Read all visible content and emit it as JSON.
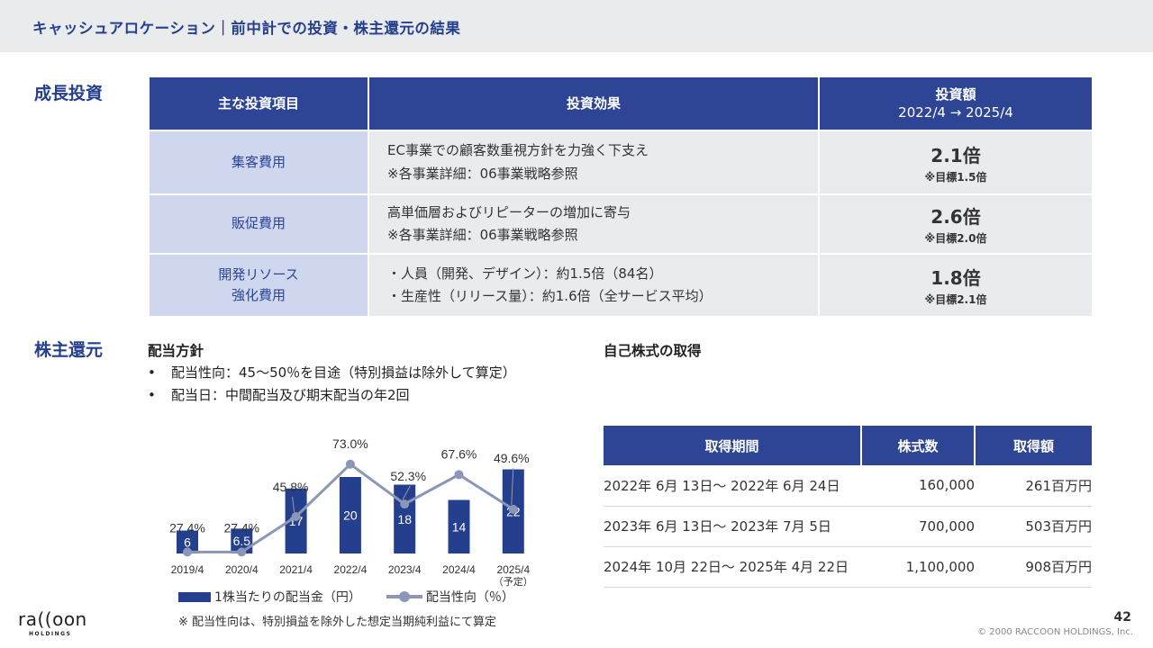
{
  "header": {
    "title": "キャッシュアロケーション｜前中計での投資・株主還元の結果"
  },
  "growth": {
    "label": "成長投資",
    "headers": {
      "item": "主な投資項目",
      "effect": "投資効果",
      "amount": "投資額",
      "amount_period": "2022/4 → 2025/4"
    },
    "rows": [
      {
        "item": [
          "集客費用"
        ],
        "effect": [
          "EC事業での顧客数重視方針を力強く下支え",
          "※各事業詳細：06事業戦略参照"
        ],
        "amount": "2.1倍",
        "target": "※目標1.5倍"
      },
      {
        "item": [
          "販促費用"
        ],
        "effect": [
          "高単価層およびリピーターの増加に寄与",
          "※各事業詳細：06事業戦略参照"
        ],
        "amount": "2.6倍",
        "target": "※目標2.0倍"
      },
      {
        "item": [
          "開発リソース",
          "強化費用"
        ],
        "effect": [
          "・人員（開発、デザイン）：約1.5倍（84名）",
          "・生産性（リリース量）：約1.6倍（全サービス平均）"
        ],
        "amount": "1.8倍",
        "target": "※目標2.1倍"
      }
    ]
  },
  "returns": {
    "label": "株主還元",
    "dividend": {
      "heading": "配当方針",
      "bullets": [
        {
          "dot": "•",
          "text": "配当性向：45〜50％を目途（特別損益は除外して算定）"
        },
        {
          "dot": "•",
          "text": "配当日：中間配当及び期末配当の年2回"
        }
      ]
    },
    "buyback": {
      "heading": "自己株式の取得",
      "headers": [
        "取得期間",
        "株式数",
        "取得額"
      ],
      "rows": [
        [
          "2022年 6月 13日〜 2022年 6月 24日",
          "160,000",
          "261百万円"
        ],
        [
          "2023年 6月 13日〜 2023年 7月 5日",
          "700,000",
          "503百万円"
        ],
        [
          "2024年 10月 22日〜 2025年 4月 22日",
          "1,100,000",
          "908百万円"
        ]
      ]
    }
  },
  "chart_data": {
    "type": "bar",
    "categories": [
      "2019/4",
      "2020/4",
      "2021/4",
      "2022/4",
      "2023/4",
      "2024/4",
      "2025/4"
    ],
    "category_notes": [
      "",
      "",
      "",
      "",
      "",
      "",
      "（予定）"
    ],
    "series": [
      {
        "name": "1株当たりの配当金（円）",
        "type": "bar",
        "values": [
          6,
          6.5,
          17,
          20,
          18,
          14,
          22
        ],
        "labels": [
          "6",
          "6.5",
          "17",
          "20",
          "18",
          "14",
          "22"
        ],
        "color": "#253f8f"
      },
      {
        "name": "配当性向（％）",
        "type": "line",
        "values": [
          27.4,
          27.4,
          45.8,
          73.0,
          52.3,
          67.6,
          49.6
        ],
        "labels": [
          "27.4%",
          "27.4%",
          "45.8%",
          "73.0%",
          "52.3%",
          "67.6%",
          "49.6%"
        ],
        "color": "#8b96b8"
      }
    ]
  },
  "legend": {
    "bar": "1株当たりの配当金（円）",
    "line": "配当性向（％）"
  },
  "footnote": "※ 配当性向は、特別損益を除外した想定当期純利益にて算定",
  "footer": {
    "logo": "ra((oon",
    "logo_sub": "HOLDINGS",
    "page": "42",
    "copyright": "© 2000 RACCOON HOLDINGS, Inc."
  },
  "colors": {
    "navy": "#2d4594",
    "light_blue": "#cfd7ee",
    "light_gray": "#eaebef",
    "line_gray": "#8b96b8"
  }
}
